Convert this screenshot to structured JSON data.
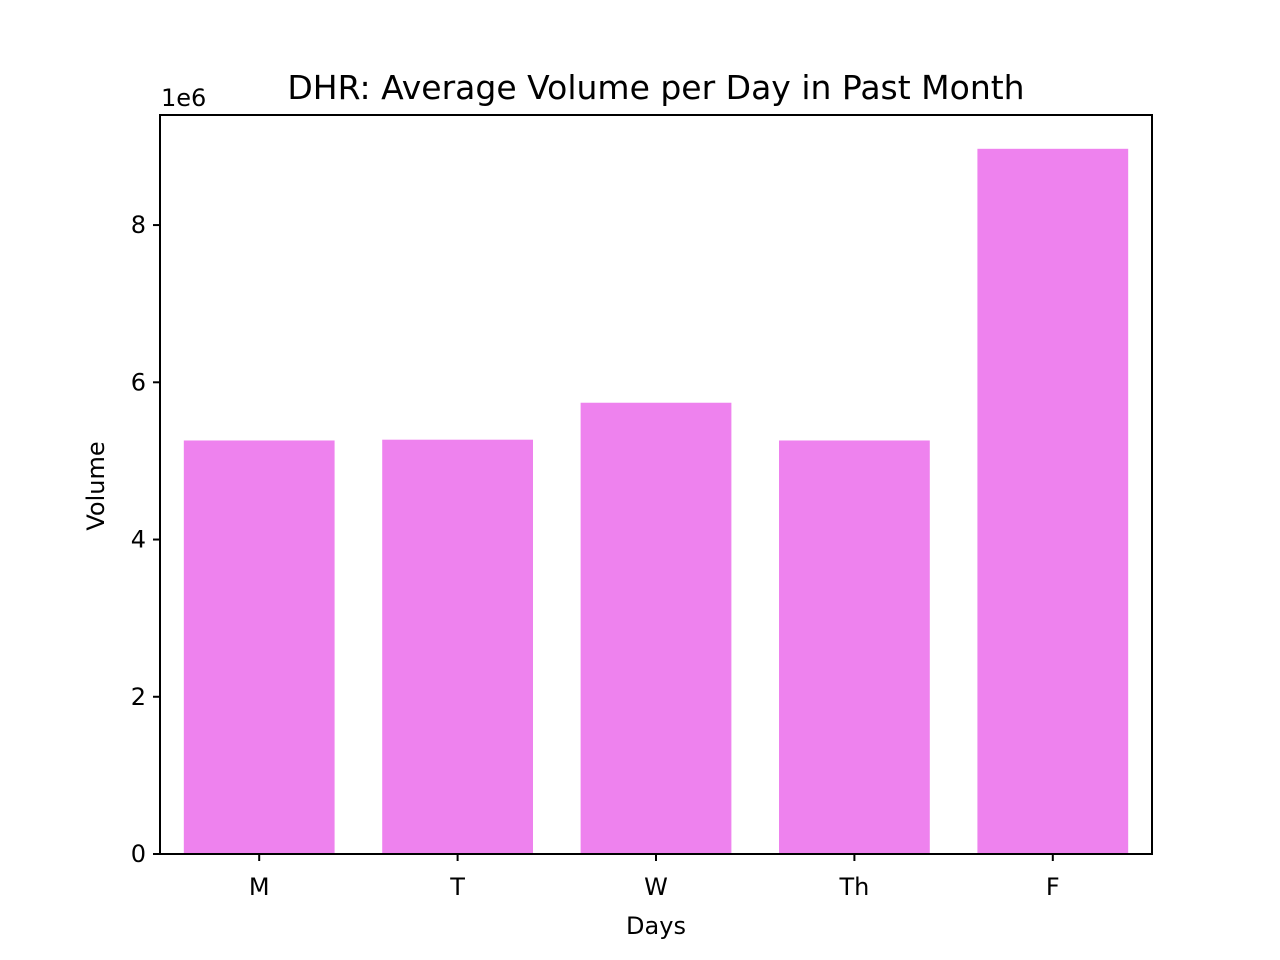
{
  "chart_data": {
    "type": "bar",
    "title": "DHR: Average Volume per Day in Past Month",
    "xlabel": "Days",
    "ylabel": "Volume",
    "offset_label": "1e6",
    "categories": [
      "M",
      "T",
      "W",
      "Th",
      "F"
    ],
    "values": [
      5260000,
      5270000,
      5740000,
      5260000,
      8970000
    ],
    "ylim": [
      0,
      9400000
    ],
    "yticks": [
      0,
      2000000,
      4000000,
      6000000,
      8000000
    ],
    "ytick_labels": [
      "0",
      "2",
      "4",
      "6",
      "8"
    ],
    "bar_color": "#ee82ee",
    "grid": false,
    "legend": "none"
  }
}
